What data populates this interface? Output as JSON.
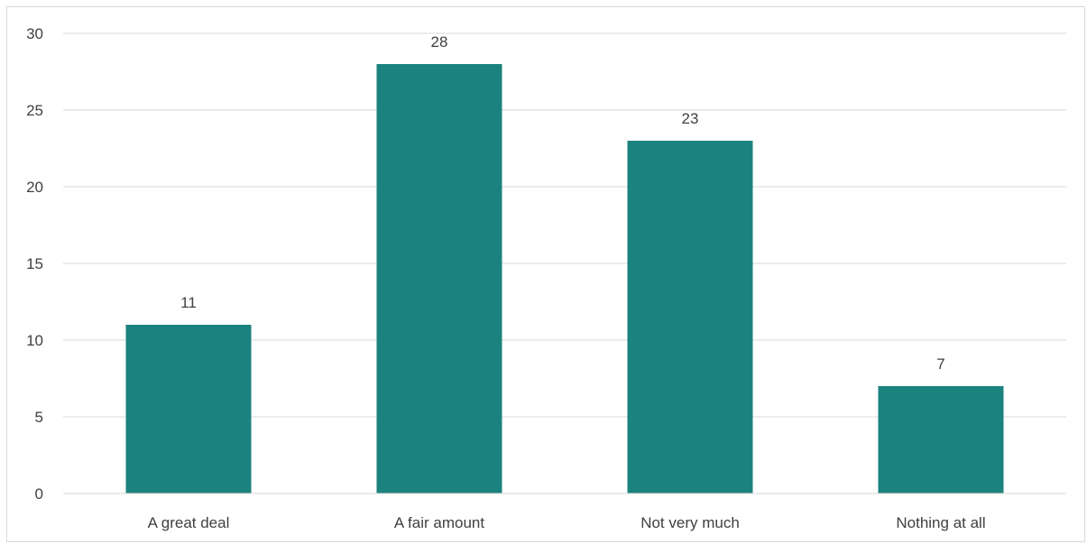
{
  "chart_data": {
    "type": "bar",
    "categories": [
      "A great deal",
      "A fair amount",
      "Not very much",
      "Nothing at all"
    ],
    "values": [
      11,
      28,
      23,
      7
    ],
    "title": "",
    "xlabel": "",
    "ylabel": "",
    "ylim": [
      0,
      30
    ],
    "yticks": [
      0,
      5,
      10,
      15,
      20,
      25,
      30
    ],
    "grid": true,
    "legend": "none",
    "data_labels": true,
    "colors": {
      "bar": "#1c827e",
      "grid": "#d9d9d9",
      "text": "#404040",
      "frame": "#d9d9d9"
    }
  }
}
